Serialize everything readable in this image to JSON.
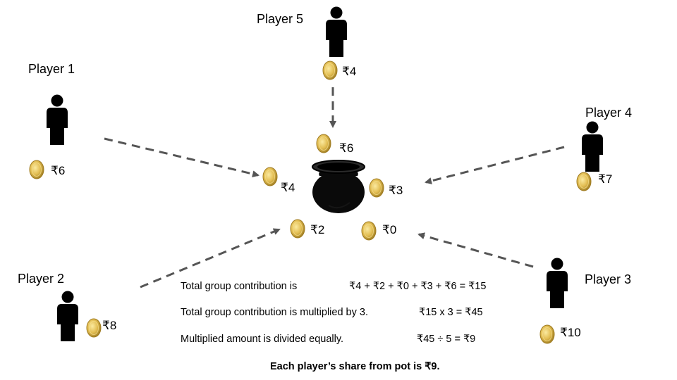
{
  "players": {
    "p1": {
      "label": "Player 1",
      "amount": "₹6"
    },
    "p2": {
      "label": "Player 2",
      "amount": "₹8"
    },
    "p3": {
      "label": "Player 3",
      "amount": "₹10"
    },
    "p4": {
      "label": "Player 4",
      "amount": "₹7"
    },
    "p5": {
      "label": "Player 5",
      "amount": "₹4"
    }
  },
  "pot_contributions": {
    "from_p1": "₹4",
    "from_p2": "₹2",
    "from_p3": "₹0",
    "from_p4": "₹3",
    "from_p5": "₹6"
  },
  "calculation": {
    "line1_text": "Total group contribution is",
    "line1_value": "₹4 + ₹2 + ₹0 + ₹3 + ₹6 = ₹15",
    "line2_text": "Total group contribution is multiplied by 3.",
    "line2_value": "₹15 x 3 = ₹45",
    "line3_text": "Multiplied amount is divided equally.",
    "line3_value": "₹45 ÷ 5 = ₹9"
  },
  "summary": "Each player’s share from pot is ₹9.",
  "colors": {
    "coin": "#d8b24a",
    "person": "#000000",
    "pot": "#0a0a0a",
    "arrow": "#555555"
  }
}
